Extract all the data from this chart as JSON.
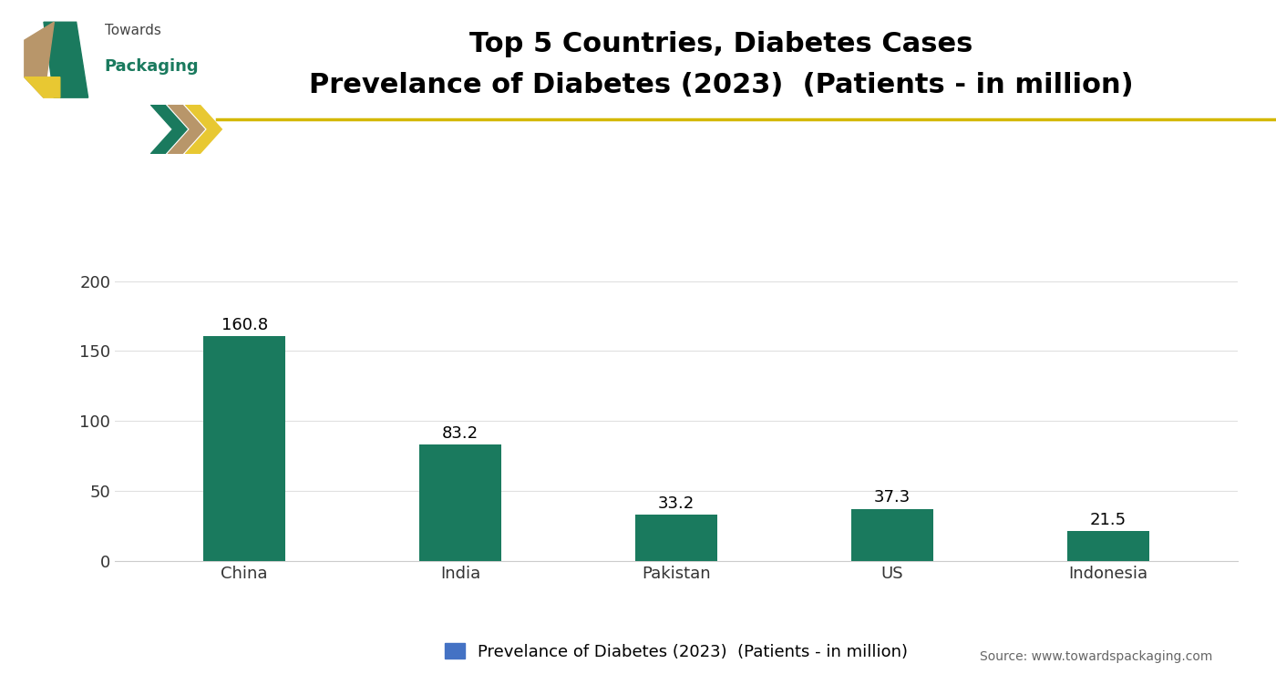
{
  "title_line1": "Top 5 Countries, Diabetes Cases",
  "title_line2": "Prevelance of Diabetes (2023)  (Patients - in million)",
  "categories": [
    "China",
    "India",
    "Pakistan",
    "US",
    "Indonesia"
  ],
  "values": [
    160.8,
    83.2,
    33.2,
    37.3,
    21.5
  ],
  "bar_color": "#1a7a5e",
  "ylim": [
    0,
    220
  ],
  "yticks": [
    0,
    50,
    100,
    150,
    200
  ],
  "legend_label": "Prevelance of Diabetes (2023)  (Patients - in million)",
  "legend_color": "#4472c4",
  "source_text": "Source: www.towardspackaging.com",
  "background_color": "#ffffff",
  "title_fontsize": 22,
  "tick_fontsize": 13,
  "bar_label_fontsize": 13,
  "separator_color": "#d4b800",
  "grid_color": "#e0e0e0"
}
